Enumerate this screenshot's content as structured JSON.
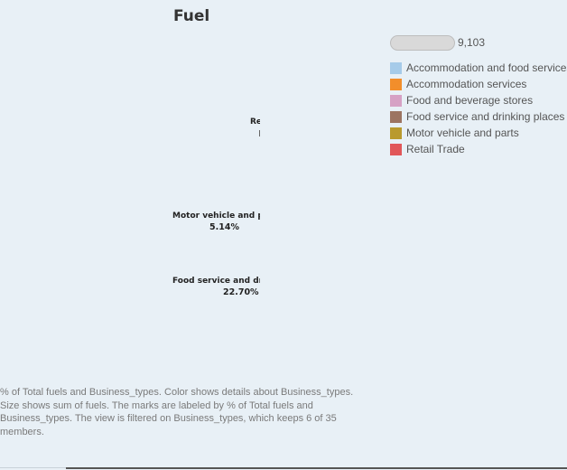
{
  "title": "Fuel",
  "size_legend": {
    "value": "9,103"
  },
  "legend": [
    {
      "label": "Accommodation and food services",
      "color": "#a6cbe9"
    },
    {
      "label": "Accommodation services",
      "color": "#f28e2b"
    },
    {
      "label": "Food and beverage stores",
      "color": "#d6a1c4"
    },
    {
      "label": "Food service and drinking places",
      "color": "#9c7461"
    },
    {
      "label": "Motor vehicle and parts",
      "color": "#b99a2e"
    },
    {
      "label": "Retail Trade",
      "color": "#e15759"
    }
  ],
  "chart_data": {
    "type": "bubble",
    "title": "Fuel",
    "marks": [
      {
        "label": "Re",
        "percent": ""
      },
      {
        "label": "Motor vehicle and pa",
        "percent": "5.14%"
      },
      {
        "label": "Food service and drin",
        "percent": "22.70%"
      }
    ]
  },
  "caption": "% of Total fuels and Business_types.  Color shows details about Business_types.  Size shows sum of fuels.  The marks are labeled by % of Total fuels and Business_types. The view is filtered on Business_types, which keeps 6 of 35 members."
}
